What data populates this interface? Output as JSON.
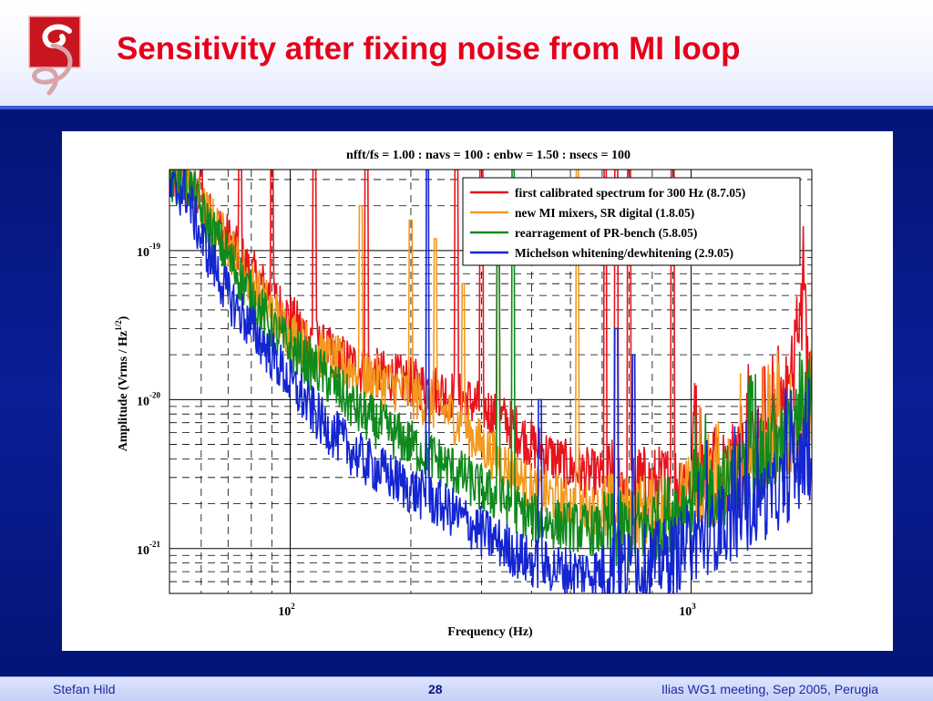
{
  "slide": {
    "title": "Sensitivity after fixing noise from MI loop",
    "logo_icon": "g-swirl-logo-icon",
    "accent_color": "#e5001a",
    "background_color": "#05157a"
  },
  "footer": {
    "author": "Stefan Hild",
    "page_number": "28",
    "event": "Ilias WG1 meeting, Sep 2005, Perugia"
  },
  "chart_data": {
    "type": "line",
    "title": "nfft/fs = 1.00 : navs = 100 : enbw = 1.50 : nsecs = 100",
    "xlabel": "Frequency (Hz)",
    "ylabel_main": "Amplitude (Vrms / Hz",
    "ylabel_sup": "1/2",
    "ylabel_tail": ")",
    "x_scale": "log",
    "y_scale": "log",
    "xlim": [
      50,
      2000
    ],
    "ylim": [
      5e-22,
      3.5e-19
    ],
    "grid": true,
    "legend_position": "top-right",
    "x_ticks": [
      {
        "base": "10",
        "exp": "2",
        "value": 100
      },
      {
        "base": "10",
        "exp": "3",
        "value": 1000
      }
    ],
    "y_ticks": [
      {
        "base": "10",
        "exp": "-21",
        "value": 1e-21
      },
      {
        "base": "10",
        "exp": "-20",
        "value": 1e-20
      },
      {
        "base": "10",
        "exp": "-19",
        "value": 1e-19
      }
    ],
    "series": [
      {
        "name": "first calibrated spectrum for 300 Hz (8.7.05)",
        "color": "#e8141c",
        "x": [
          55,
          60,
          70,
          80,
          90,
          100,
          120,
          150,
          200,
          250,
          300,
          350,
          400,
          500,
          600,
          700,
          800,
          900,
          1000,
          1200,
          1400,
          1600,
          1800,
          1900,
          1950,
          2000
        ],
        "y": [
          3e-19,
          2e-19,
          1.2e-19,
          7e-20,
          5e-20,
          3.5e-20,
          2.2e-20,
          1.6e-20,
          1.3e-20,
          1.1e-20,
          9e-21,
          7e-21,
          5e-21,
          3.5e-21,
          3e-21,
          2.8e-21,
          2.6e-21,
          2.8e-21,
          3e-21,
          3.5e-21,
          4.5e-21,
          6.5e-21,
          1.5e-20,
          4e-20,
          1.5e-20,
          1.2e-20
        ],
        "spikes": [
          [
            60,
            3.5e-19
          ],
          [
            75,
            3.5e-19
          ],
          [
            90,
            3.5e-19
          ],
          [
            115,
            3.5e-19
          ],
          [
            155,
            3.5e-19
          ],
          [
            260,
            3.5e-19
          ],
          [
            300,
            3.5e-19
          ],
          [
            330,
            2.2e-19
          ],
          [
            610,
            3.5e-19
          ],
          [
            650,
            3.5e-19
          ],
          [
            700,
            3.5e-19
          ],
          [
            900,
            3.5e-19
          ]
        ]
      },
      {
        "name": "new MI mixers, SR digital (1.8.05)",
        "color": "#f39a1f",
        "x": [
          55,
          60,
          70,
          80,
          90,
          100,
          120,
          150,
          200,
          250,
          300,
          350,
          400,
          500,
          600,
          700,
          800,
          900,
          1000,
          1200,
          1400,
          1600,
          1800,
          1900,
          2000
        ],
        "y": [
          3e-19,
          2e-19,
          1.1e-19,
          6e-20,
          4e-20,
          2.8e-20,
          2e-20,
          1.5e-20,
          1.1e-20,
          8e-21,
          5e-21,
          3.5e-21,
          2.5e-21,
          2e-21,
          1.8e-21,
          1.7e-21,
          1.8e-21,
          2e-21,
          2.3e-21,
          2.8e-21,
          3.5e-21,
          4.5e-21,
          6e-21,
          7e-21,
          8e-21
        ],
        "spikes": [
          [
            150,
            2e-19
          ],
          [
            200,
            1.6e-19
          ],
          [
            230,
            1.2e-19
          ],
          [
            270,
            6e-20
          ],
          [
            520,
            3.5e-19
          ]
        ]
      },
      {
        "name": "rearragement of PR-bench (5.8.05)",
        "color": "#0f8a1c",
        "x": [
          55,
          60,
          70,
          80,
          90,
          100,
          120,
          150,
          200,
          250,
          300,
          350,
          400,
          500,
          600,
          700,
          800,
          900,
          1000,
          1200,
          1400,
          1600,
          1800,
          1900,
          2000
        ],
        "y": [
          3e-19,
          1.8e-19,
          9e-20,
          5e-20,
          3e-20,
          2.2e-20,
          1.5e-20,
          8e-21,
          5e-21,
          3.5e-21,
          2.5e-21,
          2e-21,
          1.6e-21,
          1.4e-21,
          1.3e-21,
          1.3e-21,
          1.5e-21,
          1.8e-21,
          2.1e-21,
          2.6e-21,
          3.3e-21,
          4.3e-21,
          6e-21,
          9e-21,
          1.1e-20
        ],
        "spikes": [
          [
            330,
            2.5e-19
          ],
          [
            360,
            3.5e-19
          ]
        ]
      },
      {
        "name": "Michelson whitening/dewhitening (2.9.05)",
        "color": "#1425d2",
        "x": [
          55,
          60,
          70,
          80,
          90,
          100,
          120,
          150,
          200,
          250,
          300,
          350,
          400,
          500,
          600,
          700,
          800,
          900,
          1000,
          1200,
          1400,
          1600,
          1800,
          1900,
          2000
        ],
        "y": [
          2.5e-19,
          1.2e-19,
          5e-20,
          3e-20,
          2e-20,
          1.3e-20,
          7e-21,
          4e-21,
          2.5e-21,
          1.8e-21,
          1.3e-21,
          1e-21,
          8e-22,
          7e-22,
          7e-22,
          7.5e-22,
          8e-22,
          9e-22,
          1.1e-21,
          1.4e-21,
          1.8e-21,
          2.3e-21,
          3e-21,
          3.5e-21,
          4e-21
        ],
        "spikes": [
          [
            220,
            3.5e-19
          ],
          [
            420,
            1e-20
          ],
          [
            650,
            3e-20
          ],
          [
            720,
            2e-20
          ]
        ]
      }
    ]
  }
}
